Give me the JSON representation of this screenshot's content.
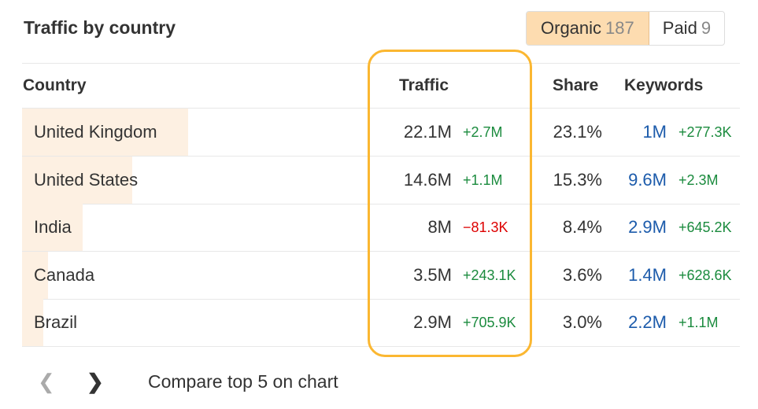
{
  "header": {
    "title": "Traffic by country",
    "toggle": [
      {
        "label": "Organic",
        "count": "187",
        "active": true
      },
      {
        "label": "Paid",
        "count": "9",
        "active": false
      }
    ]
  },
  "table": {
    "columns": [
      "Country",
      "Traffic",
      "Share",
      "Keywords"
    ],
    "rows": [
      {
        "country": "United Kingdom",
        "traffic": "22.1M",
        "traffic_change": "+2.7M",
        "share": "23.1%",
        "share_value": 23.1,
        "keywords": "1M",
        "keywords_change": "+277.3K"
      },
      {
        "country": "United States",
        "traffic": "14.6M",
        "traffic_change": "+1.1M",
        "share": "15.3%",
        "share_value": 15.3,
        "keywords": "9.6M",
        "keywords_change": "+2.3M"
      },
      {
        "country": "India",
        "traffic": "8M",
        "traffic_change": "−81.3K",
        "share": "8.4%",
        "share_value": 8.4,
        "keywords": "2.9M",
        "keywords_change": "+645.2K"
      },
      {
        "country": "Canada",
        "traffic": "3.5M",
        "traffic_change": "+243.1K",
        "share": "3.6%",
        "share_value": 3.6,
        "keywords": "1.4M",
        "keywords_change": "+628.6K"
      },
      {
        "country": "Brazil",
        "traffic": "2.9M",
        "traffic_change": "+705.9K",
        "share": "3.0%",
        "share_value": 3.0,
        "keywords": "2.2M",
        "keywords_change": "+1.1M"
      }
    ]
  },
  "footer": {
    "prev_icon": "chevron-left-icon",
    "next_icon": "chevron-right-icon",
    "compare_label": "Compare top 5 on chart"
  },
  "colors": {
    "highlight": "#fbb731",
    "positive": "#1b8b3e",
    "negative": "#dd0000",
    "keywords": "#1c5bab",
    "bar": "#fdf0e2"
  }
}
